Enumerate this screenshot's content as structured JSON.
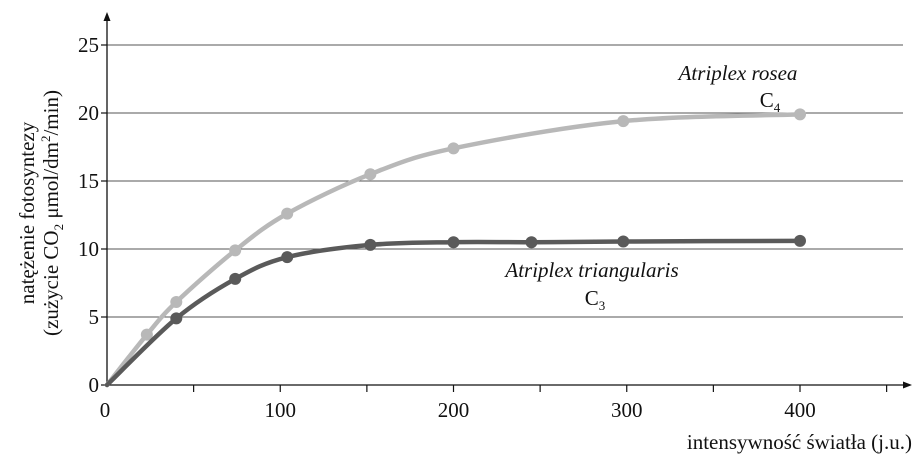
{
  "chart_data": {
    "type": "line",
    "xlabel": "intensywność światła (j.u.)",
    "ylabel_line1": "natężenie fotosyntezy",
    "ylabel_line2_parts": [
      "(zużycie CO",
      "2",
      " μmol/dm",
      "2",
      "/min)"
    ],
    "x_ticks": [
      "0",
      "100",
      "200",
      "300",
      "400"
    ],
    "y_ticks": [
      "0",
      "5",
      "10",
      "15",
      "20",
      "25"
    ],
    "xlim": [
      0,
      460
    ],
    "ylim": [
      0,
      27
    ],
    "grid": "horizontal",
    "series": [
      {
        "name": "Atriplex rosea",
        "label_sub": "C",
        "label_sub_index": "4",
        "color": "#b8b8b8",
        "x": [
          0,
          23,
          40,
          74,
          104,
          152,
          200,
          298,
          400
        ],
        "y": [
          0,
          3.7,
          6.1,
          9.9,
          12.6,
          15.5,
          17.4,
          19.4,
          19.9
        ]
      },
      {
        "name": "Atriplex triangularis",
        "label_sub": "C",
        "label_sub_index": "3",
        "color": "#5a5a5a",
        "x": [
          0,
          40,
          74,
          104,
          152,
          200,
          245,
          298,
          400
        ],
        "y": [
          0,
          4.9,
          7.8,
          9.4,
          10.3,
          10.5,
          10.5,
          10.55,
          10.6
        ]
      }
    ]
  }
}
